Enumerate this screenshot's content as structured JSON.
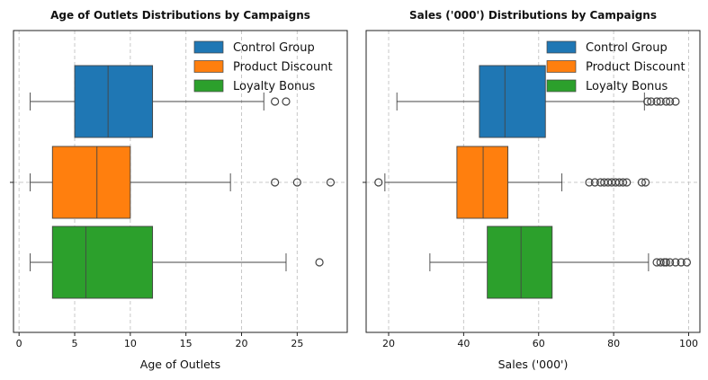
{
  "chart_data": [
    {
      "type": "box",
      "orientation": "horizontal",
      "title": "Age of Outlets Distributions by Campaigns",
      "xlabel": "Age of Outlets",
      "ylabel": "",
      "xlim": [
        -0.5,
        29.5
      ],
      "xticks": [
        0,
        5,
        10,
        15,
        20,
        25
      ],
      "grid": "x-dashed",
      "legend_position": "top-right",
      "series": [
        {
          "name": "Control Group",
          "color": "#1f77b4",
          "whisker_low": 1,
          "q1": 5,
          "median": 8,
          "q3": 12,
          "whisker_high": 22,
          "outliers": [
            23,
            24
          ]
        },
        {
          "name": "Product Discount",
          "color": "#ff7f0e",
          "whisker_low": 1,
          "q1": 3,
          "median": 7,
          "q3": 10,
          "whisker_high": 19,
          "outliers": [
            23,
            25,
            28
          ]
        },
        {
          "name": "Loyalty Bonus",
          "color": "#2ca02c",
          "whisker_low": 1,
          "q1": 3,
          "median": 6,
          "q3": 12,
          "whisker_high": 24,
          "outliers": [
            27
          ]
        }
      ]
    },
    {
      "type": "box",
      "orientation": "horizontal",
      "title": "Sales ('000') Distributions by Campaigns",
      "xlabel": "Sales ('000')",
      "ylabel": "",
      "xlim": [
        14,
        103
      ],
      "xticks": [
        20,
        40,
        60,
        80,
        100
      ],
      "grid": "x-dashed",
      "legend_position": "top-right",
      "series": [
        {
          "name": "Control Group",
          "color": "#1f77b4",
          "whisker_low": 22.2,
          "q1": 44.2,
          "median": 51,
          "q3": 61.8,
          "whisker_high": 88.2,
          "outliers": [
            89,
            90,
            91.5,
            92.5,
            94,
            95,
            96.5
          ]
        },
        {
          "name": "Product Discount",
          "color": "#ff7f0e",
          "whisker_low": 19,
          "q1": 38.2,
          "median": 45.2,
          "q3": 51.8,
          "whisker_high": 66.2,
          "outliers": [
            17.3,
            73.5,
            75,
            76.5,
            77.5,
            78.5,
            79.5,
            80.5,
            81.5,
            82.5,
            83.5,
            87.5,
            88.5
          ]
        },
        {
          "name": "Loyalty Bonus",
          "color": "#2ca02c",
          "whisker_low": 31,
          "q1": 46.3,
          "median": 55.3,
          "q3": 63.6,
          "whisker_high": 89.3,
          "outliers": [
            91.5,
            92.5,
            93.5,
            94,
            95,
            96.5,
            98,
            99.5
          ]
        }
      ]
    }
  ]
}
